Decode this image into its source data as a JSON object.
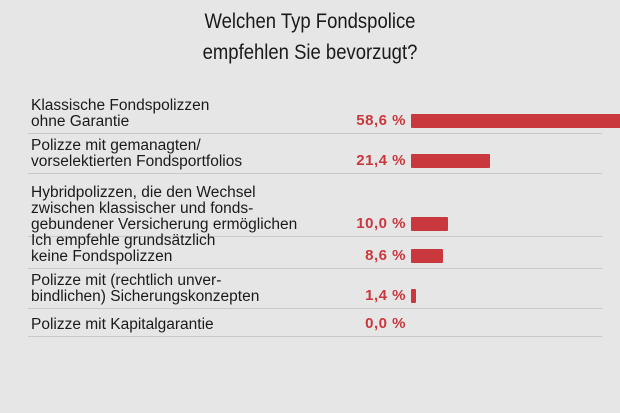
{
  "chart_data": {
    "type": "bar",
    "title": [
      "Welchen Typ Fondspolice",
      "empfehlen Sie bevorzugt?"
    ],
    "categories": [
      [
        "Klassische Fondspolizzen",
        "ohne Garantie"
      ],
      [
        "Polizze mit gemanagten/",
        "vorselektierten Fondsportfolios"
      ],
      [
        "Hybridpolizzen, die den Wechsel",
        "zwischen klassischer und fonds-",
        "gebundener Versicherung ermöglichen"
      ],
      [
        "Ich empfehle grundsätzlich",
        "keine Fondspolizzen"
      ],
      [
        "Polizze mit (rechtlich unver-",
        "bindlichen) Sicherungskonzepten"
      ],
      [
        "Polizze mit Kapitalgarantie"
      ]
    ],
    "values": [
      58.6,
      21.4,
      10.0,
      8.6,
      1.4,
      0.0
    ],
    "value_labels": [
      "58,6 %",
      "21,4 %",
      "10,0 %",
      "8,6 %",
      "1,4 %",
      "0,0 %"
    ],
    "unit": "%",
    "bar_color": "#c8383d",
    "background": "#e6e6e6",
    "orientation": "horizontal",
    "legend": "none",
    "grid": false
  }
}
